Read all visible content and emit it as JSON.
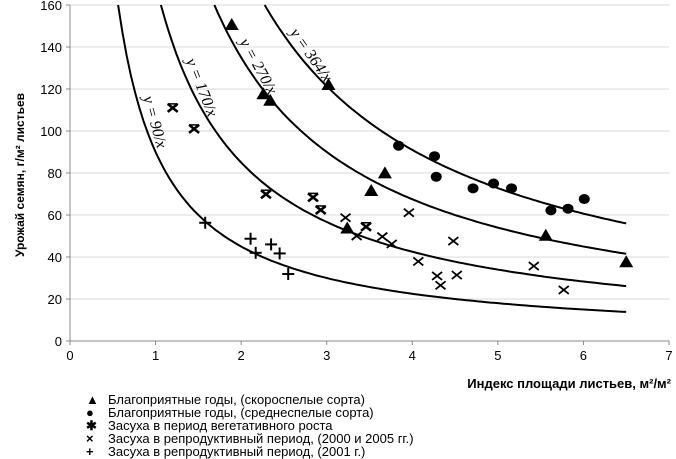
{
  "chart_data": {
    "type": "scatter",
    "title": "",
    "xlabel": "Индекс площади листьев, м²/м²",
    "ylabel": "Урожай семян, г/м² листьев",
    "xlim": [
      0,
      7
    ],
    "ylim": [
      0,
      160
    ],
    "xticks": [
      "0",
      "1",
      "2",
      "3",
      "4",
      "5",
      "6",
      "7"
    ],
    "yticks": [
      "0",
      "20",
      "40",
      "60",
      "80",
      "100",
      "120",
      "140",
      "160"
    ],
    "grid": "horizontal",
    "legend_position": "bottom-left",
    "curves": [
      {
        "label": "y = 90/x",
        "k": 90
      },
      {
        "label": "y = 170/x",
        "k": 170
      },
      {
        "label": "y = 270/x",
        "k": 270
      },
      {
        "label": "y = 364/x",
        "k": 364
      }
    ],
    "curve_xmax": 6.5,
    "series": [
      {
        "name": "Благоприятные годы, (скороспелые сорта)",
        "marker": "triangle",
        "points": [
          [
            1.89,
            150.5
          ],
          [
            2.26,
            117.5
          ],
          [
            2.34,
            114.4
          ],
          [
            3.02,
            121.9
          ],
          [
            3.24,
            53.6
          ],
          [
            3.52,
            71.4
          ],
          [
            3.68,
            79.8
          ],
          [
            5.56,
            50.1
          ],
          [
            6.5,
            37.5
          ]
        ]
      },
      {
        "name": "Благоприятные годы, (среднеспелые сорта)",
        "marker": "circle",
        "points": [
          [
            3.84,
            93
          ],
          [
            4.26,
            88
          ],
          [
            4.28,
            78.2
          ],
          [
            4.71,
            72.7
          ],
          [
            4.95,
            75
          ],
          [
            5.16,
            72.7
          ],
          [
            5.62,
            62.2
          ],
          [
            5.82,
            63
          ],
          [
            6.01,
            67.6
          ]
        ]
      },
      {
        "name": "Засуха в период вегетативного роста",
        "marker": "asterisk",
        "points": [
          [
            1.2,
            111
          ],
          [
            1.45,
            101
          ],
          [
            2.29,
            69.9
          ],
          [
            2.84,
            68.4
          ],
          [
            2.93,
            62.4
          ],
          [
            3.46,
            54.4
          ]
        ]
      },
      {
        "name": "Засуха в репродуктивный период, (2000 и 2005 гг.)",
        "marker": "x",
        "points": [
          [
            3.22,
            58.7
          ],
          [
            3.35,
            50
          ],
          [
            3.65,
            49.7
          ],
          [
            3.76,
            46.2
          ],
          [
            3.96,
            61.1
          ],
          [
            4.07,
            37.9
          ],
          [
            4.29,
            31
          ],
          [
            4.33,
            26.5
          ],
          [
            4.48,
            47.6
          ],
          [
            4.52,
            31.4
          ],
          [
            5.42,
            35.7
          ],
          [
            5.77,
            24.3
          ]
        ]
      },
      {
        "name": "Засуха в репродуктивный период, (2001 г.)",
        "marker": "plus",
        "points": [
          [
            1.58,
            56.3
          ],
          [
            2.11,
            48.7
          ],
          [
            2.17,
            42
          ],
          [
            2.35,
            46
          ],
          [
            2.45,
            41.7
          ],
          [
            2.55,
            31.9
          ]
        ]
      }
    ],
    "legend_symbols": [
      "▲",
      "●",
      "✱",
      "×",
      "+"
    ]
  }
}
